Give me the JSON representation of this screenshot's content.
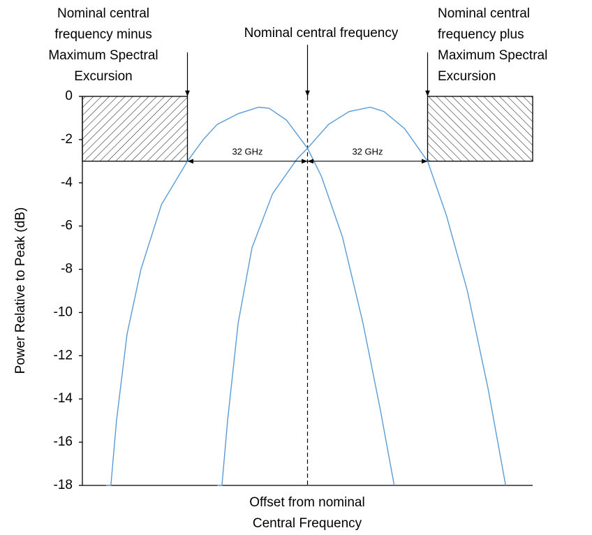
{
  "chart_data": {
    "type": "line",
    "y_label": "Power Relative to Peak (dB)",
    "x_label": [
      "Offset from nominal",
      "Central Frequency"
    ],
    "xlim": [
      -60,
      60
    ],
    "ylim": [
      -18,
      0
    ],
    "yticks": [
      0,
      -2,
      -4,
      -6,
      -8,
      -10,
      -12,
      -14,
      -16,
      -18
    ],
    "series": [
      {
        "color": "#5b9bd5",
        "x": [
          -53.7,
          -52.4,
          -50.9,
          -48.1,
          -44.4,
          -38.9,
          -32,
          -27.8,
          -24.1,
          -18.5,
          -13,
          -10.2,
          -5.6,
          0,
          3.7,
          9.3,
          14.8,
          19.4,
          23.1
        ],
        "values": [
          -18,
          -18,
          -15,
          -11,
          -8,
          -5,
          -3,
          -2,
          -1.3,
          -0.8,
          -0.5,
          -0.55,
          -1.1,
          -2.4,
          -3.7,
          -6.5,
          -10.5,
          -14.5,
          -18
        ]
      },
      {
        "color": "#5b9bd5",
        "x": [
          -24.1,
          -22.8,
          -21.3,
          -18.5,
          -14.8,
          -9.3,
          -2.8,
          0,
          5.6,
          11.1,
          16.7,
          20.4,
          25.9,
          32,
          37,
          42.6,
          48.1,
          52.8
        ],
        "values": [
          -18,
          -18,
          -15,
          -10.5,
          -7,
          -4.5,
          -2.9,
          -2.4,
          -1.3,
          -0.7,
          -0.5,
          -0.7,
          -1.5,
          -3,
          -5.5,
          -9,
          -13.5,
          -18
        ]
      }
    ],
    "center_line": 0,
    "hatched_regions": [
      {
        "x": [
          -60,
          -32
        ],
        "y": [
          -3,
          0
        ]
      },
      {
        "x": [
          32,
          60
        ],
        "y": [
          -3,
          0
        ]
      }
    ],
    "spans": [
      {
        "x": [
          -32,
          0
        ],
        "y": -3,
        "label": "32 GHz"
      },
      {
        "x": [
          0,
          32
        ],
        "y": -3,
        "label": "32 GHz"
      }
    ],
    "annotations": [
      {
        "x": -32,
        "lines": [
          "Nominal central",
          "frequency minus",
          "Maximum Spectral",
          "Excursion"
        ]
      },
      {
        "x": 0,
        "lines": [
          "Nominal central frequency"
        ]
      },
      {
        "x": 32,
        "lines": [
          "Nominal central",
          "frequency plus",
          "Maximum Spectral",
          "Excursion"
        ]
      }
    ]
  }
}
